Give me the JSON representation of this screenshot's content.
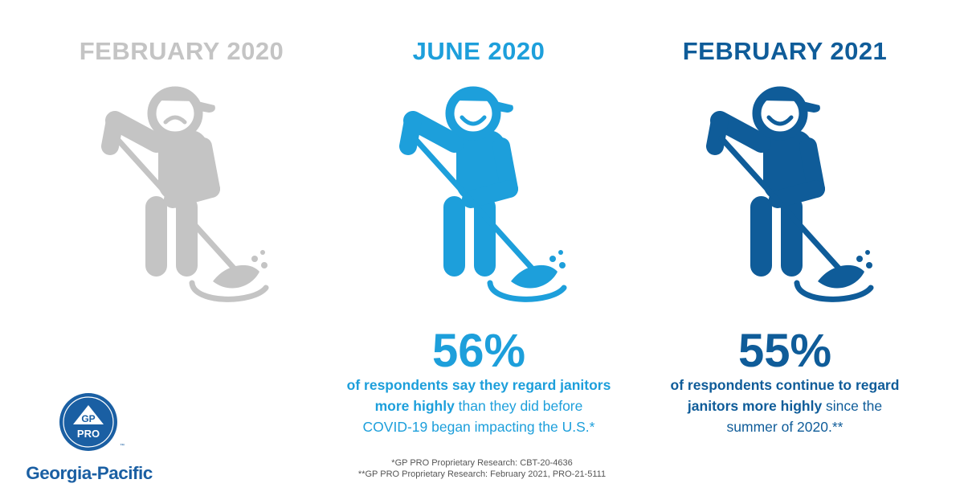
{
  "colors": {
    "gray": "#c4c4c4",
    "light_blue": "#1d9fdb",
    "dark_blue": "#0f5c99",
    "text_blue": "#2a7ab8",
    "logo_blue": "#1a5fa3"
  },
  "columns": [
    {
      "title": "FEBRUARY 2020",
      "mood": "sad"
    },
    {
      "title": "JUNE 2020",
      "mood": "happy",
      "stat": "56%",
      "desc_bold_1": "of respondents say they regard janitors",
      "desc_bold_2": "more highly",
      "desc_rest_2": " than they did before",
      "desc_line_3": "COVID-19 began impacting the U.S.*"
    },
    {
      "title": "FEBRUARY 2021",
      "mood": "happy",
      "stat": "55%",
      "desc_bold_1": "of respondents continue to regard",
      "desc_bold_2": "janitors more highly",
      "desc_rest_2": " since the",
      "desc_line_3": "summer of 2020.**"
    }
  ],
  "footnotes": [
    "*GP PRO Proprietary Research: CBT-20-4636",
    "**GP PRO Proprietary Research: February 2021, PRO-21-5111"
  ],
  "logo": {
    "badge_top": "GP",
    "badge_bottom": "PRO",
    "trademark": "™",
    "wordmark": "Georgia-Pacific"
  }
}
